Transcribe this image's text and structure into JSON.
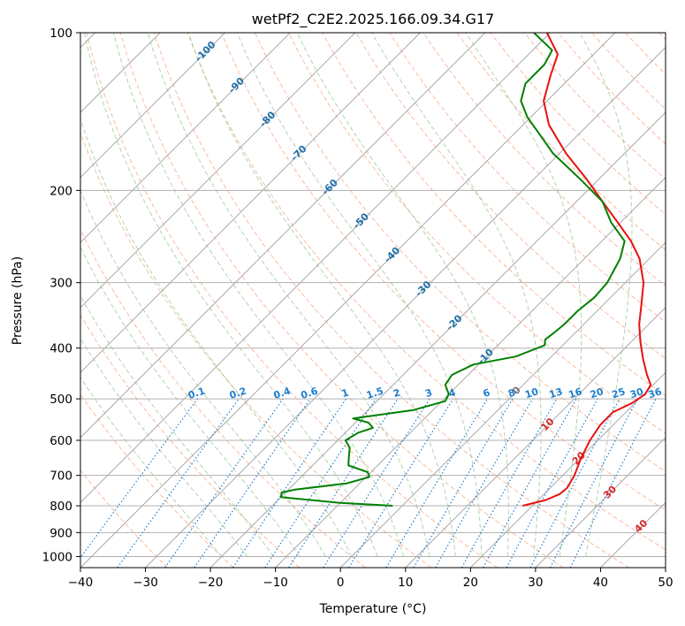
{
  "chart_data": {
    "type": "line",
    "subtype": "skew-t log-p thermodynamic diagram",
    "title": "wetPf2_C2E2.2025.166.09.34.G17",
    "xlabel": "Temperature (°C)",
    "ylabel": "Pressure (hPa)",
    "xlim": [
      -40,
      50
    ],
    "ylim": [
      1050,
      100
    ],
    "y_scale": "log",
    "grid": true,
    "x_ticks": [
      -40,
      -30,
      -20,
      -10,
      0,
      10,
      20,
      30,
      40,
      50
    ],
    "y_ticks": [
      1000,
      900,
      800,
      700,
      600,
      500,
      400,
      300,
      200,
      100
    ],
    "isotherm_skew_labels": [
      "-100",
      "-90",
      "-80",
      "-70",
      "-60",
      "-50",
      "-40",
      "-30",
      "-20",
      "-10",
      "0",
      "10",
      "20",
      "30",
      "40"
    ],
    "mixing_ratio_labels": [
      "0.1",
      "0.2",
      "0.4",
      "0.6",
      "1",
      "1.5",
      "2",
      "3",
      "4",
      "6",
      "8",
      "10",
      "13",
      "16",
      "20",
      "25",
      "30",
      "36"
    ],
    "colors": {
      "temperature": "#e8110f",
      "dewpoint": "#008000",
      "isotherm": "#a9a9a9",
      "dry_adiabat": "#f4a582",
      "moist_adiabat": "#90c090",
      "mixing_ratio": "#1e7fd0",
      "isotherm_label_cold": "#1f6fa8",
      "isotherm_label_warm": "#d62728"
    },
    "series": [
      {
        "key": "temperature",
        "points": [
          {
            "p": 800,
            "t": 18.5
          },
          {
            "p": 780,
            "t": 21.2
          },
          {
            "p": 760,
            "t": 22.4
          },
          {
            "p": 740,
            "t": 22.6
          },
          {
            "p": 700,
            "t": 21.8
          },
          {
            "p": 650,
            "t": 20.2
          },
          {
            "p": 600,
            "t": 18.8
          },
          {
            "p": 560,
            "t": 18.0
          },
          {
            "p": 530,
            "t": 18.0
          },
          {
            "p": 510,
            "t": 19.5
          },
          {
            "p": 490,
            "t": 20.2
          },
          {
            "p": 470,
            "t": 19.6
          },
          {
            "p": 450,
            "t": 17.5
          },
          {
            "p": 420,
            "t": 14.5
          },
          {
            "p": 390,
            "t": 11.5
          },
          {
            "p": 360,
            "t": 8.5
          },
          {
            "p": 330,
            "t": 5.8
          },
          {
            "p": 300,
            "t": 2.8
          },
          {
            "p": 270,
            "t": -1.5
          },
          {
            "p": 250,
            "t": -5.5
          },
          {
            "p": 230,
            "t": -10.5
          },
          {
            "p": 210,
            "t": -16.0
          },
          {
            "p": 190,
            "t": -22.0
          },
          {
            "p": 170,
            "t": -29.0
          },
          {
            "p": 150,
            "t": -36.0
          },
          {
            "p": 135,
            "t": -40.5
          },
          {
            "p": 120,
            "t": -43.5
          },
          {
            "p": 110,
            "t": -45.5
          },
          {
            "p": 100,
            "t": -50.5
          }
        ]
      },
      {
        "key": "dewpoint",
        "points": [
          {
            "p": 800,
            "t": -1.5
          },
          {
            "p": 790,
            "t": -10.0
          },
          {
            "p": 770,
            "t": -20.0
          },
          {
            "p": 755,
            "t": -20.6
          },
          {
            "p": 745,
            "t": -19.0
          },
          {
            "p": 725,
            "t": -12.0
          },
          {
            "p": 705,
            "t": -9.5
          },
          {
            "p": 690,
            "t": -10.5
          },
          {
            "p": 670,
            "t": -14.5
          },
          {
            "p": 650,
            "t": -15.5
          },
          {
            "p": 620,
            "t": -17.0
          },
          {
            "p": 600,
            "t": -18.8
          },
          {
            "p": 580,
            "t": -18.0
          },
          {
            "p": 568,
            "t": -16.5
          },
          {
            "p": 555,
            "t": -18.0
          },
          {
            "p": 545,
            "t": -21.0
          },
          {
            "p": 525,
            "t": -13.0
          },
          {
            "p": 505,
            "t": -9.5
          },
          {
            "p": 490,
            "t": -10.0
          },
          {
            "p": 470,
            "t": -12.0
          },
          {
            "p": 450,
            "t": -12.5
          },
          {
            "p": 430,
            "t": -10.8
          },
          {
            "p": 415,
            "t": -5.5
          },
          {
            "p": 395,
            "t": -2.8
          },
          {
            "p": 385,
            "t": -3.6
          },
          {
            "p": 375,
            "t": -3.3
          },
          {
            "p": 360,
            "t": -3.0
          },
          {
            "p": 340,
            "t": -3.0
          },
          {
            "p": 320,
            "t": -2.5
          },
          {
            "p": 300,
            "t": -2.8
          },
          {
            "p": 270,
            "t": -4.5
          },
          {
            "p": 250,
            "t": -6.5
          },
          {
            "p": 230,
            "t": -11.5
          },
          {
            "p": 210,
            "t": -16.0
          },
          {
            "p": 190,
            "t": -23.0
          },
          {
            "p": 170,
            "t": -31.0
          },
          {
            "p": 155,
            "t": -36.5
          },
          {
            "p": 145,
            "t": -40.5
          },
          {
            "p": 135,
            "t": -44.0
          },
          {
            "p": 125,
            "t": -46.0
          },
          {
            "p": 115,
            "t": -46.0
          },
          {
            "p": 108,
            "t": -47.0
          },
          {
            "p": 100,
            "t": -52.5
          }
        ]
      }
    ]
  }
}
